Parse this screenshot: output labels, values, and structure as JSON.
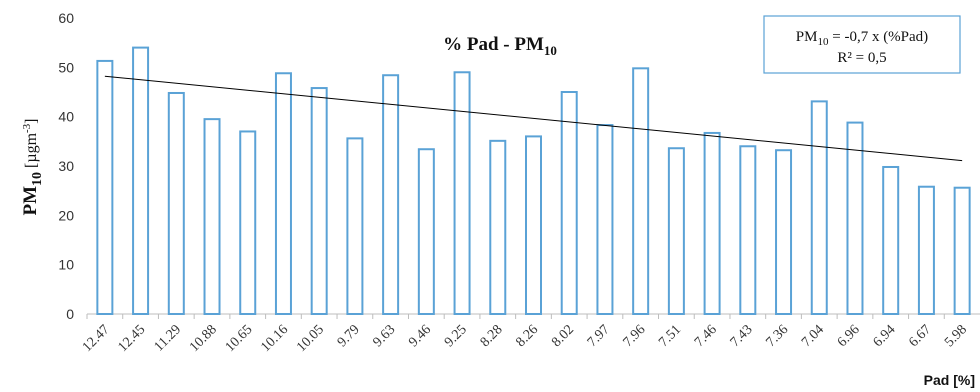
{
  "chart_data": {
    "type": "bar",
    "title": "% Pad - PM",
    "title_sub": "10",
    "xlabel": "Pad [%]",
    "ylabel": "PM",
    "ylabel_sub": "10",
    "ylabel_unit_open": " [µgm",
    "ylabel_unit_sup": "-3",
    "ylabel_unit_close": "]",
    "categories": [
      "12.47",
      "12.45",
      "11.29",
      "10.88",
      "10.65",
      "10.16",
      "10.05",
      "9.79",
      "9.63",
      "9.46",
      "9.25",
      "8.28",
      "8.26",
      "8.02",
      "7.97",
      "7.96",
      "7.51",
      "7.46",
      "7.43",
      "7.36",
      "7.04",
      "6.96",
      "6.94",
      "6.67",
      "5.98"
    ],
    "values": [
      51.3,
      54,
      44.8,
      39.5,
      37,
      48.8,
      45.8,
      35.6,
      48.4,
      33.4,
      49,
      35.1,
      36,
      45,
      38.3,
      49.8,
      33.6,
      36.7,
      34,
      33.2,
      43.1,
      38.8,
      29.8,
      25.8,
      25.6
    ],
    "ylim": [
      0,
      60
    ],
    "yticks": [
      "0",
      "10",
      "20",
      "30",
      "40",
      "50",
      "60"
    ],
    "trendline": {
      "y_start": 48.2,
      "y_end": 31.1
    },
    "legend_box": {
      "line1_a": "PM",
      "line1_sub": "10",
      "line1_b": " = -0,7 x (%Pad)",
      "line2": "R² = 0,5"
    },
    "bar_color": "#5aa2d6",
    "trend_color": "#000000",
    "box_color": "#5aa2d6",
    "grid": false,
    "legend_position": "top-right"
  }
}
